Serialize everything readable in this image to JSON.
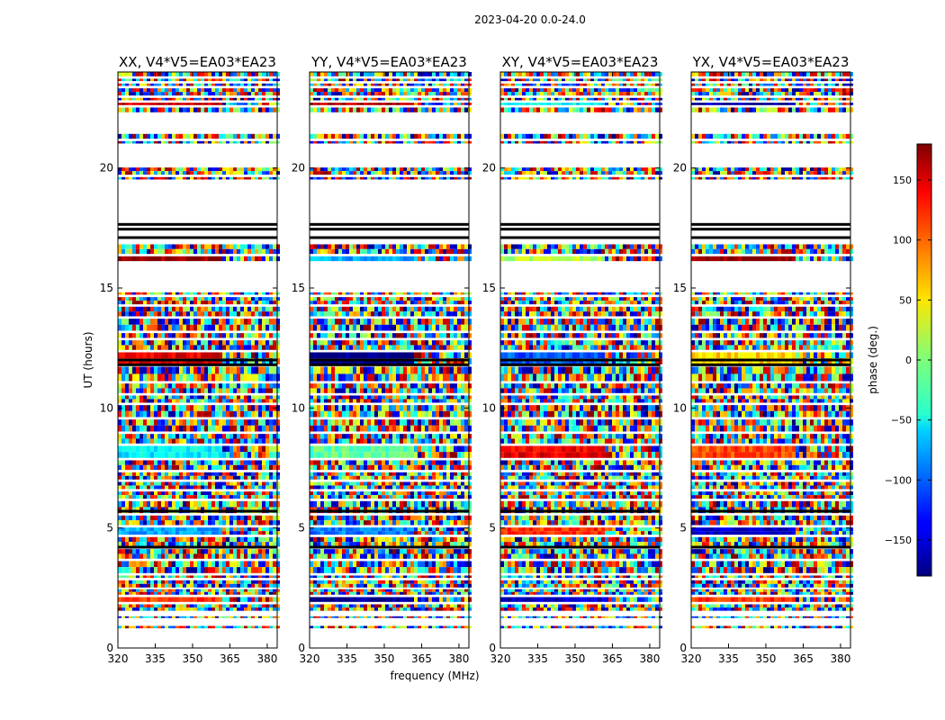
{
  "figure_title": "2023-04-20 0.0-24.0",
  "chart_data": {
    "type": "heatmap",
    "title": "2023-04-20 0.0-24.0",
    "xlabel": "frequency (MHz)",
    "ylabel": "UT (hours)",
    "xlim": [
      320,
      384
    ],
    "ylim": [
      0,
      24
    ],
    "x_ticks": [
      320,
      335,
      350,
      365,
      380
    ],
    "y_ticks": [
      0,
      5,
      10,
      15,
      20
    ],
    "panels": [
      {
        "title": "XX, V4*V5=EA03*EA23",
        "polarization": "XX"
      },
      {
        "title": "YY, V4*V5=EA03*EA23",
        "polarization": "YY"
      },
      {
        "title": "XY, V4*V5=EA03*EA23",
        "polarization": "XY"
      },
      {
        "title": "YX, V4*V5=EA03*EA23",
        "polarization": "YX"
      }
    ],
    "colorbar": {
      "label": "phase (deg.)",
      "range": [
        -180,
        180
      ],
      "ticks": [
        150,
        100,
        50,
        0,
        -50,
        -100,
        -150
      ],
      "colormap": "jet"
    },
    "data_rows_hours": [
      [
        0.82,
        0.92
      ],
      [
        1.25,
        1.32
      ],
      [
        1.55,
        1.82
      ],
      [
        1.92,
        2.12
      ],
      [
        2.22,
        2.45
      ],
      [
        2.52,
        2.82
      ],
      [
        2.92,
        3.02
      ],
      [
        3.12,
        3.62
      ],
      [
        3.72,
        4.12
      ],
      [
        4.22,
        4.62
      ],
      [
        4.72,
        5.02
      ],
      [
        5.12,
        5.52
      ],
      [
        5.62,
        6.12
      ],
      [
        6.22,
        6.52
      ],
      [
        6.62,
        6.92
      ],
      [
        7.02,
        7.32
      ],
      [
        7.42,
        7.82
      ],
      [
        7.92,
        8.42
      ],
      [
        8.52,
        8.92
      ],
      [
        9.02,
        9.52
      ],
      [
        9.62,
        10.12
      ],
      [
        10.22,
        10.52
      ],
      [
        10.62,
        11.02
      ],
      [
        11.12,
        11.72
      ],
      [
        11.82,
        12.32
      ],
      [
        12.42,
        12.82
      ],
      [
        12.92,
        13.12
      ],
      [
        13.22,
        13.72
      ],
      [
        13.82,
        14.22
      ],
      [
        14.32,
        14.62
      ],
      [
        14.72,
        14.82
      ],
      [
        16.12,
        16.32
      ],
      [
        16.42,
        16.82
      ],
      [
        19.52,
        19.62
      ],
      [
        19.72,
        20.02
      ],
      [
        21.02,
        21.12
      ],
      [
        21.22,
        21.42
      ],
      [
        22.32,
        22.52
      ],
      [
        22.62,
        22.72
      ],
      [
        22.82,
        22.92
      ],
      [
        23.02,
        23.32
      ],
      [
        23.42,
        23.52
      ],
      [
        23.62,
        23.72
      ],
      [
        23.82,
        24.0
      ]
    ],
    "black_lines_hours": [
      17.1,
      17.45,
      17.65,
      11.8,
      12.0,
      5.7,
      4.2
    ]
  }
}
